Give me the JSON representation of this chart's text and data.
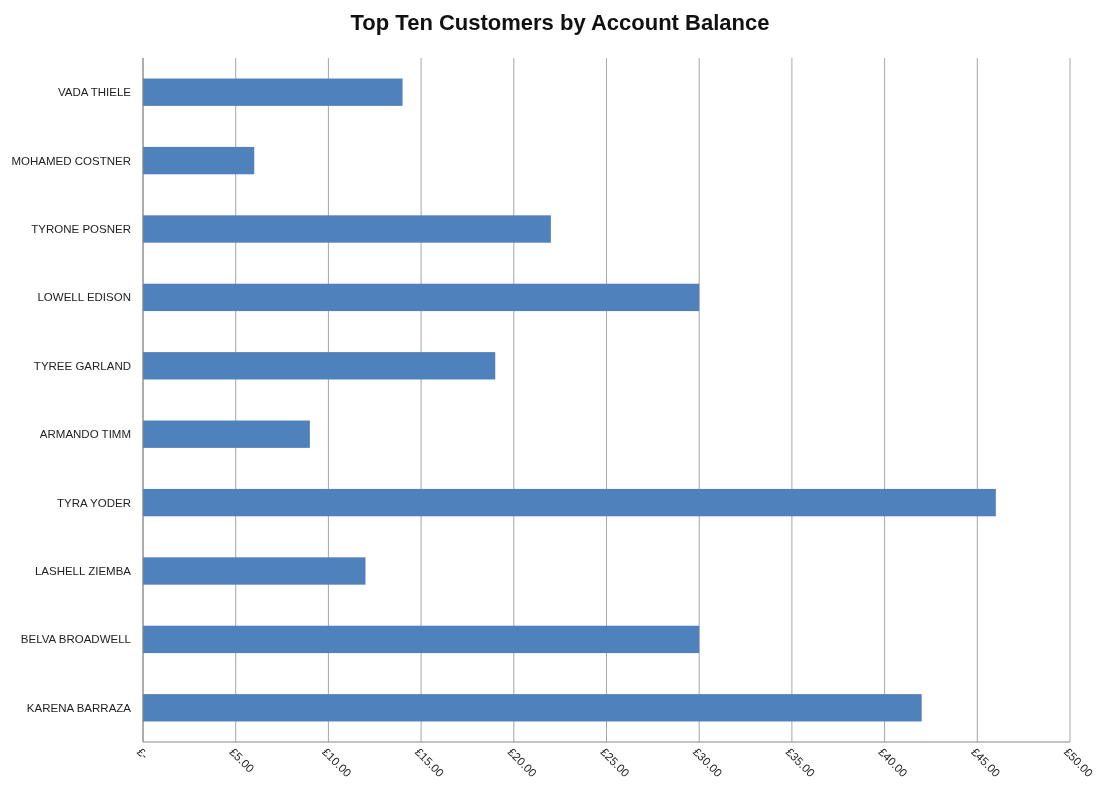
{
  "chart_data": {
    "type": "bar",
    "orientation": "horizontal",
    "title": "Top Ten Customers by Account Balance",
    "categories": [
      "VADA THIELE",
      "MOHAMED COSTNER",
      "TYRONE POSNER",
      "LOWELL EDISON",
      "TYREE GARLAND",
      "ARMANDO TIMM",
      "TYRA YODER",
      "LASHELL ZIEMBA",
      "BELVA BROADWELL",
      "KARENA BARRAZA"
    ],
    "values": [
      14,
      6,
      22,
      30,
      19,
      9,
      46,
      12,
      30,
      42
    ],
    "color": "#4f81bd",
    "xlim": [
      0,
      50
    ],
    "xticks": [
      {
        "value": 0,
        "label": "£-"
      },
      {
        "value": 5,
        "label": "£5.00"
      },
      {
        "value": 10,
        "label": "£10.00"
      },
      {
        "value": 15,
        "label": "£15.00"
      },
      {
        "value": 20,
        "label": "£20.00"
      },
      {
        "value": 25,
        "label": "£25.00"
      },
      {
        "value": 30,
        "label": "£30.00"
      },
      {
        "value": 35,
        "label": "£35.00"
      },
      {
        "value": 40,
        "label": "£40.00"
      },
      {
        "value": 45,
        "label": "£45.00"
      },
      {
        "value": 50,
        "label": "£50.00"
      }
    ],
    "grid": "x"
  }
}
